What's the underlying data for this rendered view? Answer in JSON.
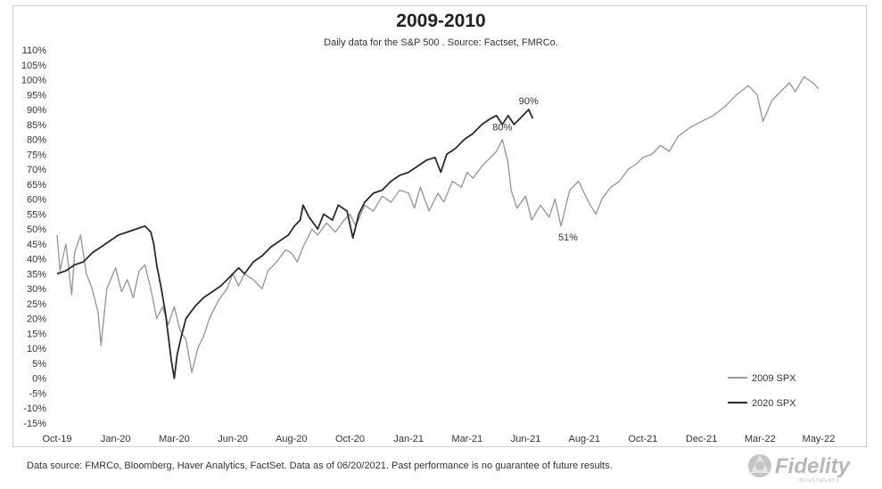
{
  "chart_data": {
    "type": "line",
    "title": "2009-2010",
    "subtitle": "Daily data for the S&P 500 .  Source: Factset, FMRCo.",
    "xlabel": "",
    "ylabel": "",
    "ylim": [
      -15,
      110
    ],
    "y_ticks": [
      "-15%",
      "-10%",
      "-5%",
      "0%",
      "5%",
      "10%",
      "15%",
      "20%",
      "25%",
      "30%",
      "35%",
      "40%",
      "45%",
      "50%",
      "55%",
      "60%",
      "65%",
      "70%",
      "75%",
      "80%",
      "85%",
      "90%",
      "95%",
      "100%",
      "105%",
      "110%"
    ],
    "y_tick_values": [
      -15,
      -10,
      -5,
      0,
      5,
      10,
      15,
      20,
      25,
      30,
      35,
      40,
      45,
      50,
      55,
      60,
      65,
      70,
      75,
      80,
      85,
      90,
      95,
      100,
      105,
      110
    ],
    "x_ticks": [
      "Oct-19",
      "Jan-20",
      "Mar-20",
      "Jun-20",
      "Aug-20",
      "Oct-20",
      "Jan-21",
      "Mar-21",
      "Jun-21",
      "Aug-21",
      "Oct-21",
      "Dec-21",
      "Mar-22",
      "May-22"
    ],
    "x_tick_positions": [
      0,
      1,
      2,
      3,
      4,
      5,
      6,
      7,
      8,
      9,
      10,
      11,
      12,
      13
    ],
    "xlim": [
      0,
      13
    ],
    "grid": false,
    "legend_position": "bottom-right",
    "series": [
      {
        "name": "2009 SPX",
        "color": "#9a9a9a",
        "points": [
          [
            0,
            48
          ],
          [
            0.05,
            36
          ],
          [
            0.15,
            45
          ],
          [
            0.25,
            28
          ],
          [
            0.3,
            42
          ],
          [
            0.4,
            48
          ],
          [
            0.5,
            35
          ],
          [
            0.6,
            30
          ],
          [
            0.7,
            22
          ],
          [
            0.75,
            11
          ],
          [
            0.85,
            30
          ],
          [
            1.0,
            37
          ],
          [
            1.1,
            29
          ],
          [
            1.2,
            33
          ],
          [
            1.3,
            27
          ],
          [
            1.4,
            36
          ],
          [
            1.5,
            38
          ],
          [
            1.6,
            30
          ],
          [
            1.7,
            20
          ],
          [
            1.8,
            24
          ],
          [
            1.9,
            18
          ],
          [
            2.0,
            24
          ],
          [
            2.1,
            16
          ],
          [
            2.2,
            13
          ],
          [
            2.3,
            2
          ],
          [
            2.4,
            10
          ],
          [
            2.5,
            14
          ],
          [
            2.6,
            20
          ],
          [
            2.75,
            26
          ],
          [
            2.9,
            30
          ],
          [
            3.0,
            35
          ],
          [
            3.1,
            31
          ],
          [
            3.2,
            35
          ],
          [
            3.35,
            33
          ],
          [
            3.5,
            30
          ],
          [
            3.6,
            36
          ],
          [
            3.75,
            39
          ],
          [
            3.9,
            43
          ],
          [
            4.0,
            42
          ],
          [
            4.1,
            39
          ],
          [
            4.2,
            44
          ],
          [
            4.35,
            50
          ],
          [
            4.45,
            48
          ],
          [
            4.6,
            52
          ],
          [
            4.75,
            49
          ],
          [
            4.9,
            53
          ],
          [
            5.0,
            55
          ],
          [
            5.1,
            51
          ],
          [
            5.25,
            58
          ],
          [
            5.4,
            56
          ],
          [
            5.55,
            61
          ],
          [
            5.7,
            59
          ],
          [
            5.85,
            63
          ],
          [
            6.0,
            62
          ],
          [
            6.1,
            57
          ],
          [
            6.2,
            64
          ],
          [
            6.35,
            56
          ],
          [
            6.5,
            62
          ],
          [
            6.6,
            59
          ],
          [
            6.75,
            66
          ],
          [
            6.9,
            64
          ],
          [
            7.0,
            69
          ],
          [
            7.1,
            67
          ],
          [
            7.25,
            71
          ],
          [
            7.4,
            74
          ],
          [
            7.5,
            76
          ],
          [
            7.6,
            80
          ],
          [
            7.7,
            72
          ],
          [
            7.75,
            63
          ],
          [
            7.85,
            57
          ],
          [
            8.0,
            61
          ],
          [
            8.1,
            53
          ],
          [
            8.25,
            58
          ],
          [
            8.4,
            54
          ],
          [
            8.5,
            60
          ],
          [
            8.6,
            51
          ],
          [
            8.75,
            63
          ],
          [
            8.9,
            66
          ],
          [
            9.0,
            62
          ],
          [
            9.1,
            58
          ],
          [
            9.2,
            55
          ],
          [
            9.3,
            60
          ],
          [
            9.45,
            64
          ],
          [
            9.6,
            66
          ],
          [
            9.75,
            70
          ],
          [
            9.9,
            72
          ],
          [
            10.0,
            74
          ],
          [
            10.15,
            75
          ],
          [
            10.3,
            78
          ],
          [
            10.45,
            76
          ],
          [
            10.6,
            81
          ],
          [
            10.8,
            84
          ],
          [
            11.0,
            86
          ],
          [
            11.2,
            88
          ],
          [
            11.4,
            91
          ],
          [
            11.6,
            95
          ],
          [
            11.8,
            98
          ],
          [
            11.95,
            95
          ],
          [
            12.05,
            86
          ],
          [
            12.2,
            93
          ],
          [
            12.35,
            96
          ],
          [
            12.5,
            99
          ],
          [
            12.6,
            96
          ],
          [
            12.75,
            101
          ],
          [
            12.9,
            99
          ],
          [
            13.0,
            97
          ]
        ]
      },
      {
        "name": "2020 SPX",
        "color": "#2a2a2a",
        "points": [
          [
            0,
            35
          ],
          [
            0.15,
            36
          ],
          [
            0.3,
            38
          ],
          [
            0.45,
            39
          ],
          [
            0.6,
            42
          ],
          [
            0.75,
            44
          ],
          [
            0.9,
            46
          ],
          [
            1.05,
            48
          ],
          [
            1.2,
            49
          ],
          [
            1.35,
            50
          ],
          [
            1.5,
            51
          ],
          [
            1.6,
            49
          ],
          [
            1.65,
            45
          ],
          [
            1.7,
            38
          ],
          [
            1.78,
            30
          ],
          [
            1.85,
            22
          ],
          [
            1.9,
            14
          ],
          [
            1.95,
            6
          ],
          [
            2.0,
            0
          ],
          [
            2.05,
            8
          ],
          [
            2.12,
            14
          ],
          [
            2.2,
            20
          ],
          [
            2.35,
            24
          ],
          [
            2.5,
            27
          ],
          [
            2.65,
            29
          ],
          [
            2.8,
            31
          ],
          [
            2.95,
            34
          ],
          [
            3.1,
            37
          ],
          [
            3.2,
            35
          ],
          [
            3.35,
            39
          ],
          [
            3.5,
            41
          ],
          [
            3.65,
            44
          ],
          [
            3.8,
            46
          ],
          [
            3.95,
            48
          ],
          [
            4.05,
            51
          ],
          [
            4.15,
            53
          ],
          [
            4.2,
            58
          ],
          [
            4.3,
            54
          ],
          [
            4.45,
            50
          ],
          [
            4.55,
            55
          ],
          [
            4.7,
            53
          ],
          [
            4.8,
            58
          ],
          [
            4.95,
            56
          ],
          [
            5.05,
            47
          ],
          [
            5.15,
            55
          ],
          [
            5.25,
            59
          ],
          [
            5.4,
            62
          ],
          [
            5.55,
            63
          ],
          [
            5.7,
            66
          ],
          [
            5.85,
            68
          ],
          [
            6.0,
            69
          ],
          [
            6.15,
            71
          ],
          [
            6.3,
            73
          ],
          [
            6.45,
            74
          ],
          [
            6.55,
            69
          ],
          [
            6.65,
            75
          ],
          [
            6.8,
            77
          ],
          [
            6.95,
            80
          ],
          [
            7.1,
            82
          ],
          [
            7.25,
            85
          ],
          [
            7.4,
            87
          ],
          [
            7.5,
            88
          ],
          [
            7.6,
            85
          ],
          [
            7.7,
            88
          ],
          [
            7.8,
            85
          ],
          [
            7.9,
            87
          ],
          [
            8.0,
            89
          ],
          [
            8.05,
            90
          ],
          [
            8.12,
            87
          ]
        ]
      }
    ],
    "annotations": [
      {
        "label": "90%",
        "x": 8.05,
        "y": 90
      },
      {
        "label": "80%",
        "x": 7.6,
        "y": 80
      },
      {
        "label": "51%",
        "x": 8.6,
        "y": 51
      }
    ]
  },
  "footer": {
    "note": "Data source: FMRCo, Bloomberg, Haver Analytics, FactSet. Data as of 06/20/2021. Past performance is no guarantee of future results."
  },
  "logo": {
    "text": "Fidelity",
    "subtext": "INVESTMENTS",
    "color": "#b8b8b8"
  }
}
